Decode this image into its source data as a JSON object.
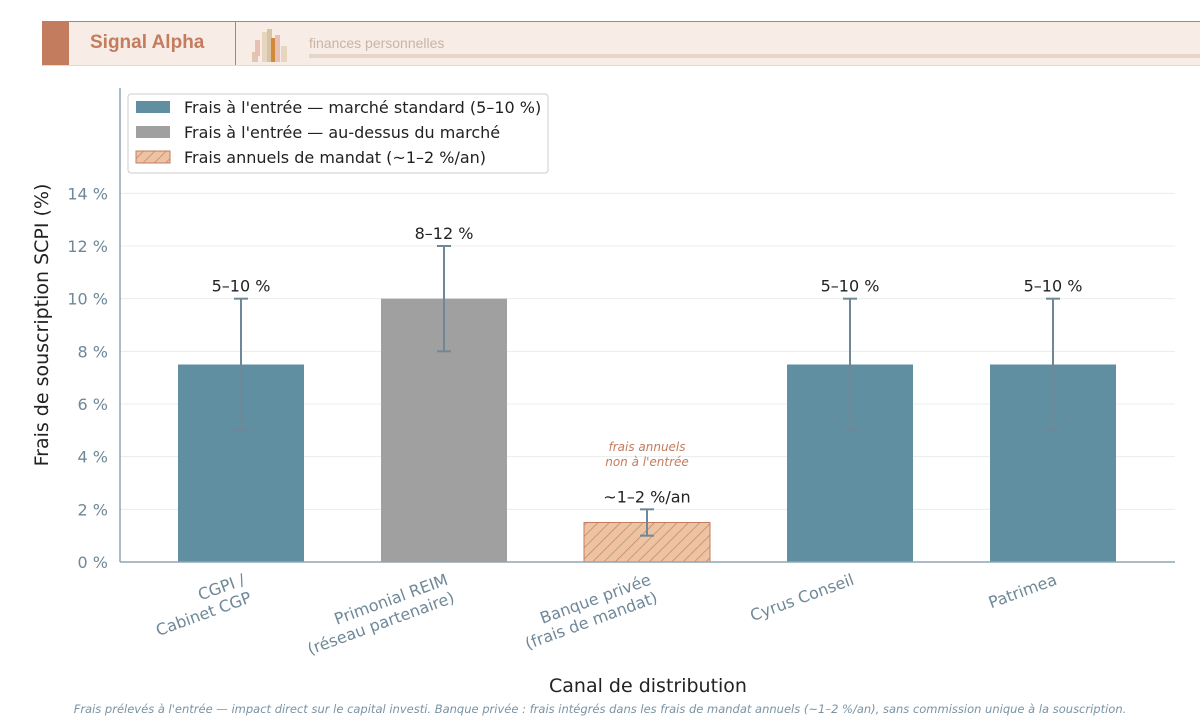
{
  "header": {
    "brand": "Signal Alpha",
    "tagline": "finances personnelles"
  },
  "footnote": "Frais prélevés à l'entrée — impact direct sur le capital investi. Banque privée : frais intégrés dans les frais de mandat annuels (~1–2 %/an), sans commission unique à la souscription.",
  "chart_data": {
    "type": "bar",
    "xlabel": "Canal de distribution",
    "ylabel": "Frais de souscription SCPI (%)",
    "ylim": [
      0,
      18
    ],
    "yticks": [
      0,
      2,
      4,
      6,
      8,
      10,
      12,
      14
    ],
    "ytick_labels": [
      "0 %",
      "2 %",
      "4 %",
      "6 %",
      "8 %",
      "10 %",
      "12 %",
      "14 %"
    ],
    "grid": true,
    "legend_position": "top-left",
    "legend": [
      {
        "label": "Frais à l'entrée — marché standard (5–10 %)",
        "color": "#5f8fa0",
        "hatch": false
      },
      {
        "label": "Frais à l'entrée — au-dessus du marché",
        "color": "#a0a0a0",
        "hatch": false
      },
      {
        "label": "Frais annuels de mandat (~1–2 %/an)",
        "color": "#ecc3a3",
        "hatch": true
      }
    ],
    "categories": [
      "CGPI /\nCabinet CGP",
      "Primonial REIM\n(réseau partenaire)",
      "Banque privée\n(frais de mandat)",
      "Cyrus Conseil",
      "Patrimea"
    ],
    "values": [
      7.5,
      10,
      1.5,
      7.5,
      7.5
    ],
    "error_low": [
      5,
      8,
      1,
      5,
      5
    ],
    "error_high": [
      10,
      12,
      2,
      10,
      10
    ],
    "bar_types": [
      0,
      1,
      2,
      0,
      0
    ],
    "data_labels": [
      "5–10 %",
      "8–12 %",
      "~1–2 %/an",
      "5–10 %",
      "5–10 %"
    ],
    "annotation": "frais annuels\nnon à l'entrée",
    "colors": {
      "axis": "#8fa5b3",
      "tick": "#6f8898",
      "error": "#6f8898",
      "annotation": "#c47c5e",
      "hatch_stroke": "#c47c5e"
    }
  }
}
